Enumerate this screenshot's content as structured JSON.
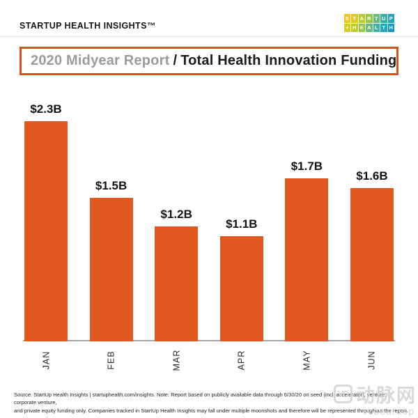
{
  "header": {
    "brand": "STARTUP HEALTH INSIGHTS™"
  },
  "logo": {
    "rows": [
      {
        "text": "STARTUP",
        "colors": [
          "#F3C51C",
          "#DFCB24",
          "#BECC2F",
          "#97C641",
          "#68BC74",
          "#3BAF9E",
          "#1FA4BE"
        ]
      },
      {
        "text": "+HEALTH",
        "colors": [
          "#D8CB26",
          "#BCCB32",
          "#94C547",
          "#69BB7C",
          "#41AFA3",
          "#24A4BF",
          "#1295C9"
        ]
      }
    ]
  },
  "title": {
    "report": "2020 Midyear Report",
    "separator": "/",
    "subject": "Total Health Innovation Funding"
  },
  "chart_data": {
    "type": "bar",
    "title": "2020 Midyear Report / Total Health Innovation Funding",
    "categories": [
      "JAN",
      "FEB",
      "MAR",
      "APR",
      "MAY",
      "JUN"
    ],
    "values": [
      2.3,
      1.5,
      1.2,
      1.1,
      1.7,
      1.6
    ],
    "value_labels": [
      "$2.3B",
      "$1.5B",
      "$1.2B",
      "$1.1B",
      "$1.7B",
      "$1.6B"
    ],
    "xlabel": "",
    "ylabel": "",
    "units": "USD billions",
    "ylim": [
      0,
      2.5
    ],
    "grid": false,
    "legend": false,
    "bar_color": "#E0571F"
  },
  "footer": {
    "line1": "Source: StartUp Health Insights | startuphealth.com/insights. Note: Report based on publicly available data through 6/30/20 on seed (incl. accelerator), venture, corporate venture,",
    "line2": "and private equity funding only. Companies tracked in StartUp Health Insights may fall under multiple moonshots and therefore will be represented throughout the report."
  },
  "watermark": {
    "logo_text": "VD",
    "name": "动脉网",
    "url": "vcbeat.top"
  },
  "colors": {
    "accent_orange": "#E0571F",
    "title_border_orange": "#D4541E",
    "title_gray": "#9B9B9B",
    "baseline_gray": "#A6A6A6"
  }
}
